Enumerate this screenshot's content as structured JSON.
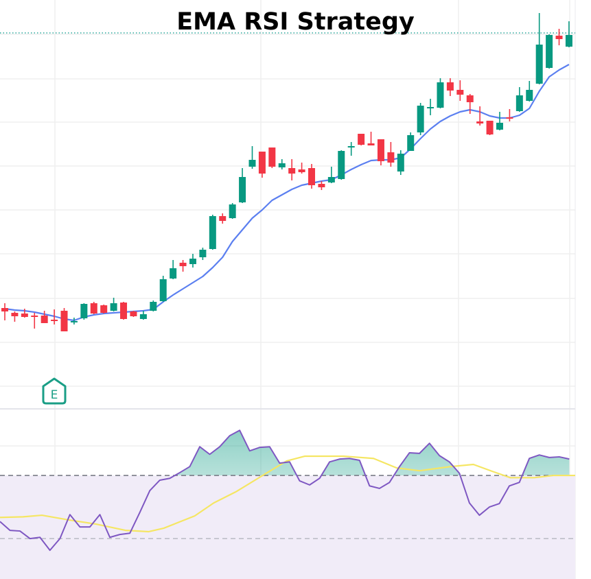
{
  "chart_data": [
    {
      "type": "candlestick",
      "title": "EMA RSI Strategy",
      "colors": {
        "up": "#089981",
        "down": "#f23645",
        "ema": "#5b7ff0",
        "last_price_line": "#26a69a",
        "grid": "#eeeeee"
      },
      "ylim": [
        90.4,
        150
      ],
      "grid": true,
      "ohlc": [
        [
          105.1,
          105.8,
          103.3,
          104.6
        ],
        [
          104.4,
          104.6,
          103.1,
          103.9
        ],
        [
          104.3,
          105.0,
          103.7,
          103.8
        ],
        [
          104.0,
          104.4,
          102.1,
          103.9
        ],
        [
          104.0,
          104.7,
          102.9,
          102.9
        ],
        [
          103.4,
          104.9,
          102.7,
          103.3
        ],
        [
          104.7,
          105.1,
          101.7,
          101.7
        ],
        [
          103.1,
          103.7,
          102.7,
          103.2
        ],
        [
          103.6,
          105.8,
          103.4,
          105.7
        ],
        [
          105.8,
          106.0,
          104.2,
          104.3
        ],
        [
          105.5,
          105.6,
          104.3,
          104.4
        ],
        [
          104.7,
          106.6,
          104.6,
          105.8
        ],
        [
          105.9,
          106.0,
          103.4,
          103.5
        ],
        [
          104.6,
          104.7,
          103.8,
          103.9
        ],
        [
          103.5,
          104.7,
          103.4,
          104.2
        ],
        [
          104.7,
          106.2,
          104.6,
          106.0
        ],
        [
          106.1,
          109.8,
          106.0,
          109.3
        ],
        [
          109.4,
          112.1,
          109.3,
          110.9
        ],
        [
          111.7,
          112.1,
          110.4,
          111.2
        ],
        [
          111.5,
          113.0,
          111.0,
          112.3
        ],
        [
          112.5,
          113.9,
          112.1,
          113.6
        ],
        [
          113.7,
          118.7,
          113.6,
          118.5
        ],
        [
          118.5,
          118.9,
          117.4,
          117.8
        ],
        [
          118.2,
          120.4,
          118.1,
          120.2
        ],
        [
          120.5,
          125.5,
          120.4,
          124.2
        ],
        [
          125.7,
          128.7,
          125.4,
          126.7
        ],
        [
          127.9,
          127.9,
          124.1,
          124.7
        ],
        [
          128.5,
          128.5,
          125.5,
          125.7
        ],
        [
          125.6,
          126.8,
          125.3,
          126.2
        ],
        [
          125.5,
          126.8,
          123.7,
          124.7
        ],
        [
          125.3,
          126.3,
          124.7,
          124.9
        ],
        [
          125.5,
          126.1,
          122.5,
          123.0
        ],
        [
          123.2,
          123.6,
          122.3,
          122.7
        ],
        [
          123.4,
          125.7,
          123.3,
          124.2
        ],
        [
          123.9,
          128.1,
          123.8,
          128.0
        ],
        [
          128.6,
          129.3,
          127.3,
          128.7
        ],
        [
          130.5,
          130.5,
          128.8,
          128.9
        ],
        [
          129.1,
          130.8,
          128.8,
          128.8
        ],
        [
          129.7,
          129.7,
          125.9,
          126.5
        ],
        [
          127.8,
          129.3,
          125.7,
          126.3
        ],
        [
          125.0,
          128.1,
          124.5,
          127.6
        ],
        [
          128.0,
          130.7,
          128.0,
          130.3
        ],
        [
          130.7,
          135.0,
          130.3,
          134.6
        ],
        [
          134.3,
          135.6,
          133.2,
          134.4
        ],
        [
          134.3,
          138.6,
          134.2,
          138.0
        ],
        [
          138.0,
          138.6,
          136.0,
          136.8
        ],
        [
          136.9,
          138.3,
          135.3,
          136.2
        ],
        [
          136.1,
          136.3,
          133.4,
          135.1
        ],
        [
          132.3,
          134.5,
          131.7,
          132.0
        ],
        [
          132.4,
          132.4,
          130.3,
          130.4
        ],
        [
          131.1,
          133.7,
          131.0,
          132.1
        ],
        [
          132.9,
          134.1,
          132.3,
          132.8
        ],
        [
          133.8,
          137.3,
          133.7,
          136.1
        ],
        [
          135.3,
          138.2,
          135.2,
          136.9
        ],
        [
          137.8,
          148.1,
          137.7,
          143.5
        ],
        [
          140.1,
          145.0,
          140.0,
          144.9
        ],
        [
          144.8,
          145.8,
          143.4,
          144.3
        ],
        [
          143.2,
          146.9,
          143.1,
          144.9
        ]
      ],
      "ema": [
        105.0,
        104.8,
        104.7,
        104.5,
        104.2,
        103.9,
        103.5,
        103.3,
        103.8,
        104.1,
        104.3,
        104.4,
        104.5,
        104.6,
        104.7,
        104.9,
        106.0,
        107.0,
        107.9,
        108.8,
        109.7,
        111.0,
        112.5,
        114.8,
        116.5,
        118.2,
        119.4,
        120.8,
        121.6,
        122.4,
        123.0,
        123.3,
        123.6,
        123.8,
        124.5,
        125.3,
        126.0,
        126.6,
        126.7,
        126.7,
        127.0,
        128.3,
        129.8,
        131.2,
        132.3,
        133.1,
        133.7,
        134.0,
        133.7,
        133.1,
        132.8,
        132.8,
        133.2,
        134.2,
        136.7,
        138.8,
        139.8,
        140.6
      ],
      "last_price": 145.2,
      "marker": {
        "label": "E",
        "bar_index": 5,
        "color": "#1a9e86"
      }
    },
    {
      "type": "line",
      "colors": {
        "rsi": "#7e57c2",
        "rsi_ma": "#f5e663",
        "upper_fill": "#089981",
        "lower_band_fill": "#f1ecf8",
        "band_line": "#787b86"
      },
      "ylim": [
        17.2,
        71.1
      ],
      "bands": [
        50,
        30
      ],
      "rsi": [
        35.4,
        32.6,
        32.4,
        30.0,
        30.4,
        26.3,
        30.0,
        37.6,
        33.7,
        33.7,
        37.6,
        30.4,
        31.3,
        31.7,
        38.3,
        45.2,
        48.5,
        49.1,
        50.9,
        52.8,
        59.1,
        56.7,
        59.1,
        62.6,
        64.3,
        57.8,
        58.9,
        59.1,
        53.9,
        54.3,
        48.3,
        47.0,
        49.1,
        54.3,
        55.2,
        55.4,
        54.8,
        46.7,
        45.9,
        47.8,
        52.8,
        57.2,
        57.0,
        60.2,
        56.3,
        54.3,
        50.7,
        41.3,
        37.4,
        40.0,
        41.1,
        46.7,
        47.8,
        55.4,
        56.5,
        55.7,
        55.9,
        55.2
      ],
      "rsi_ma": {
        "x": [
          0,
          2.3,
          4.2,
          6.9,
          9.6,
          12.6,
          14.9,
          16.4,
          19.5,
          21.4,
          23.6,
          26.3,
          28.7,
          30.5,
          34.4,
          37.4,
          39.7,
          42,
          45.1,
          47.4,
          49.3,
          51.1,
          53.5,
          55.4,
          58
        ],
        "y": [
          36.7,
          36.9,
          37.4,
          35.9,
          34.6,
          32.6,
          32.2,
          33.3,
          37.2,
          41.3,
          44.8,
          50.0,
          54.6,
          56.1,
          56.1,
          55.4,
          52.4,
          51.5,
          52.8,
          53.5,
          51.3,
          49.3,
          49.3,
          50.0,
          50.0
        ]
      }
    }
  ]
}
